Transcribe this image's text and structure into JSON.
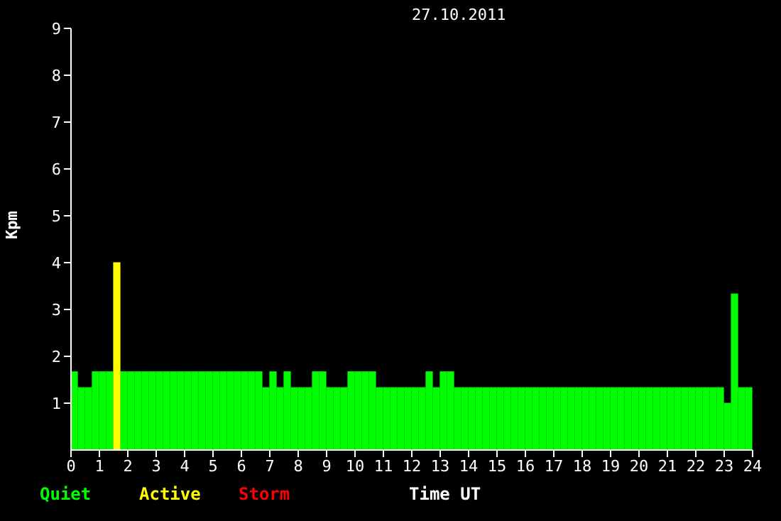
{
  "chart_data": {
    "type": "bar",
    "title": "27.10.2011",
    "xlabel": "Time UT",
    "ylabel": "Kpm",
    "stacked": true,
    "legend": "bottom",
    "x": [
      0.125,
      0.375,
      0.625,
      0.875,
      1.125,
      1.375,
      1.625,
      1.875,
      2.125,
      2.375,
      2.625,
      2.875,
      3.125,
      3.375,
      3.625,
      3.875,
      4.125,
      4.375,
      4.625,
      4.875,
      5.125,
      5.375,
      5.625,
      5.875,
      6.125,
      6.375,
      6.625,
      6.875,
      7.125,
      7.375,
      7.625,
      7.875,
      8.125,
      8.375,
      8.625,
      8.875,
      9.125,
      9.375,
      9.625,
      9.875,
      10.125,
      10.375,
      10.625,
      10.875,
      11.125,
      11.375,
      11.625,
      11.875,
      12.125,
      12.375,
      12.625,
      12.875,
      13.125,
      13.375,
      13.625,
      13.875,
      14.125,
      14.375,
      14.625,
      14.875,
      15.125,
      15.375,
      15.625,
      15.875,
      16.125,
      16.375,
      16.625,
      16.875,
      17.125,
      17.375,
      17.625,
      17.875,
      18.125,
      18.375,
      18.625,
      18.875,
      19.125,
      19.375,
      19.625,
      19.875,
      20.125,
      20.375,
      20.625,
      20.875,
      21.125,
      21.375,
      21.625,
      21.875,
      22.125,
      22.375,
      22.625,
      22.875,
      23.125,
      23.375,
      23.625,
      23.875
    ],
    "series": [
      {
        "name": "Quiet",
        "color": "#00ff00",
        "values": [
          1.67,
          1.33,
          1.33,
          1.67,
          1.67,
          1.67,
          null,
          1.67,
          1.67,
          1.67,
          1.67,
          1.67,
          1.67,
          1.67,
          1.67,
          1.67,
          1.67,
          1.67,
          1.67,
          1.67,
          1.67,
          1.67,
          1.67,
          1.67,
          1.67,
          1.67,
          1.67,
          1.33,
          1.67,
          1.33,
          1.67,
          1.33,
          1.33,
          1.33,
          1.67,
          1.67,
          1.33,
          1.33,
          1.33,
          1.67,
          1.67,
          1.67,
          1.67,
          1.33,
          1.33,
          1.33,
          1.33,
          1.33,
          1.33,
          1.33,
          1.67,
          1.33,
          1.67,
          1.67,
          1.33,
          1.33,
          1.33,
          1.33,
          1.33,
          1.33,
          1.33,
          1.33,
          1.33,
          1.33,
          1.33,
          1.33,
          1.33,
          1.33,
          1.33,
          1.33,
          1.33,
          1.33,
          1.33,
          1.33,
          1.33,
          1.33,
          1.33,
          1.33,
          1.33,
          1.33,
          1.33,
          1.33,
          1.33,
          1.33,
          1.33,
          1.33,
          1.33,
          1.33,
          1.33,
          1.33,
          1.33,
          1.33,
          1.0,
          3.33,
          1.33,
          1.33
        ]
      },
      {
        "name": "Active",
        "color": "#ffff00",
        "values": [
          null,
          null,
          null,
          null,
          null,
          null,
          4,
          null,
          null,
          null,
          null,
          null,
          null,
          null,
          null,
          null,
          null,
          null,
          null,
          null,
          null,
          null,
          null,
          null,
          null,
          null,
          null,
          null,
          null,
          null,
          null,
          null,
          null,
          null,
          null,
          null,
          null,
          null,
          null,
          null,
          null,
          null,
          null,
          null,
          null,
          null,
          null,
          null,
          null,
          null,
          null,
          null,
          null,
          null,
          null,
          null,
          null,
          null,
          null,
          null,
          null,
          null,
          null,
          null,
          null,
          null,
          null,
          null,
          null,
          null,
          null,
          null,
          null,
          null,
          null,
          null,
          null,
          null,
          null,
          null,
          null,
          null,
          null,
          null,
          null,
          null,
          null,
          null,
          null,
          null,
          null,
          null,
          null,
          null,
          null,
          null
        ]
      },
      {
        "name": "Storm",
        "color": "#ff0000",
        "values": [
          null,
          null,
          null,
          null,
          null,
          null,
          null,
          null,
          null,
          null,
          null,
          null,
          null,
          null,
          null,
          null,
          null,
          null,
          null,
          null,
          null,
          null,
          null,
          null,
          null,
          null,
          null,
          null,
          null,
          null,
          null,
          null,
          null,
          null,
          null,
          null,
          null,
          null,
          null,
          null,
          null,
          null,
          null,
          null,
          null,
          null,
          null,
          null,
          null,
          null,
          null,
          null,
          null,
          null,
          null,
          null,
          null,
          null,
          null,
          null,
          null,
          null,
          null,
          null,
          null,
          null,
          null,
          null,
          null,
          null,
          null,
          null,
          null,
          null,
          null,
          null,
          null,
          null,
          null,
          null,
          null,
          null,
          null,
          null,
          null,
          null,
          null,
          null,
          null,
          null,
          null,
          null,
          null,
          null,
          null,
          null
        ]
      }
    ],
    "xlim": [
      0,
      24
    ],
    "xticks": [
      0,
      1,
      2,
      3,
      4,
      5,
      6,
      7,
      8,
      9,
      10,
      11,
      12,
      13,
      14,
      15,
      16,
      17,
      18,
      19,
      20,
      21,
      22,
      23,
      24
    ],
    "ylim": [
      0,
      9
    ],
    "yticks": [
      1,
      2,
      3,
      4,
      5,
      6,
      7,
      8,
      9
    ]
  }
}
